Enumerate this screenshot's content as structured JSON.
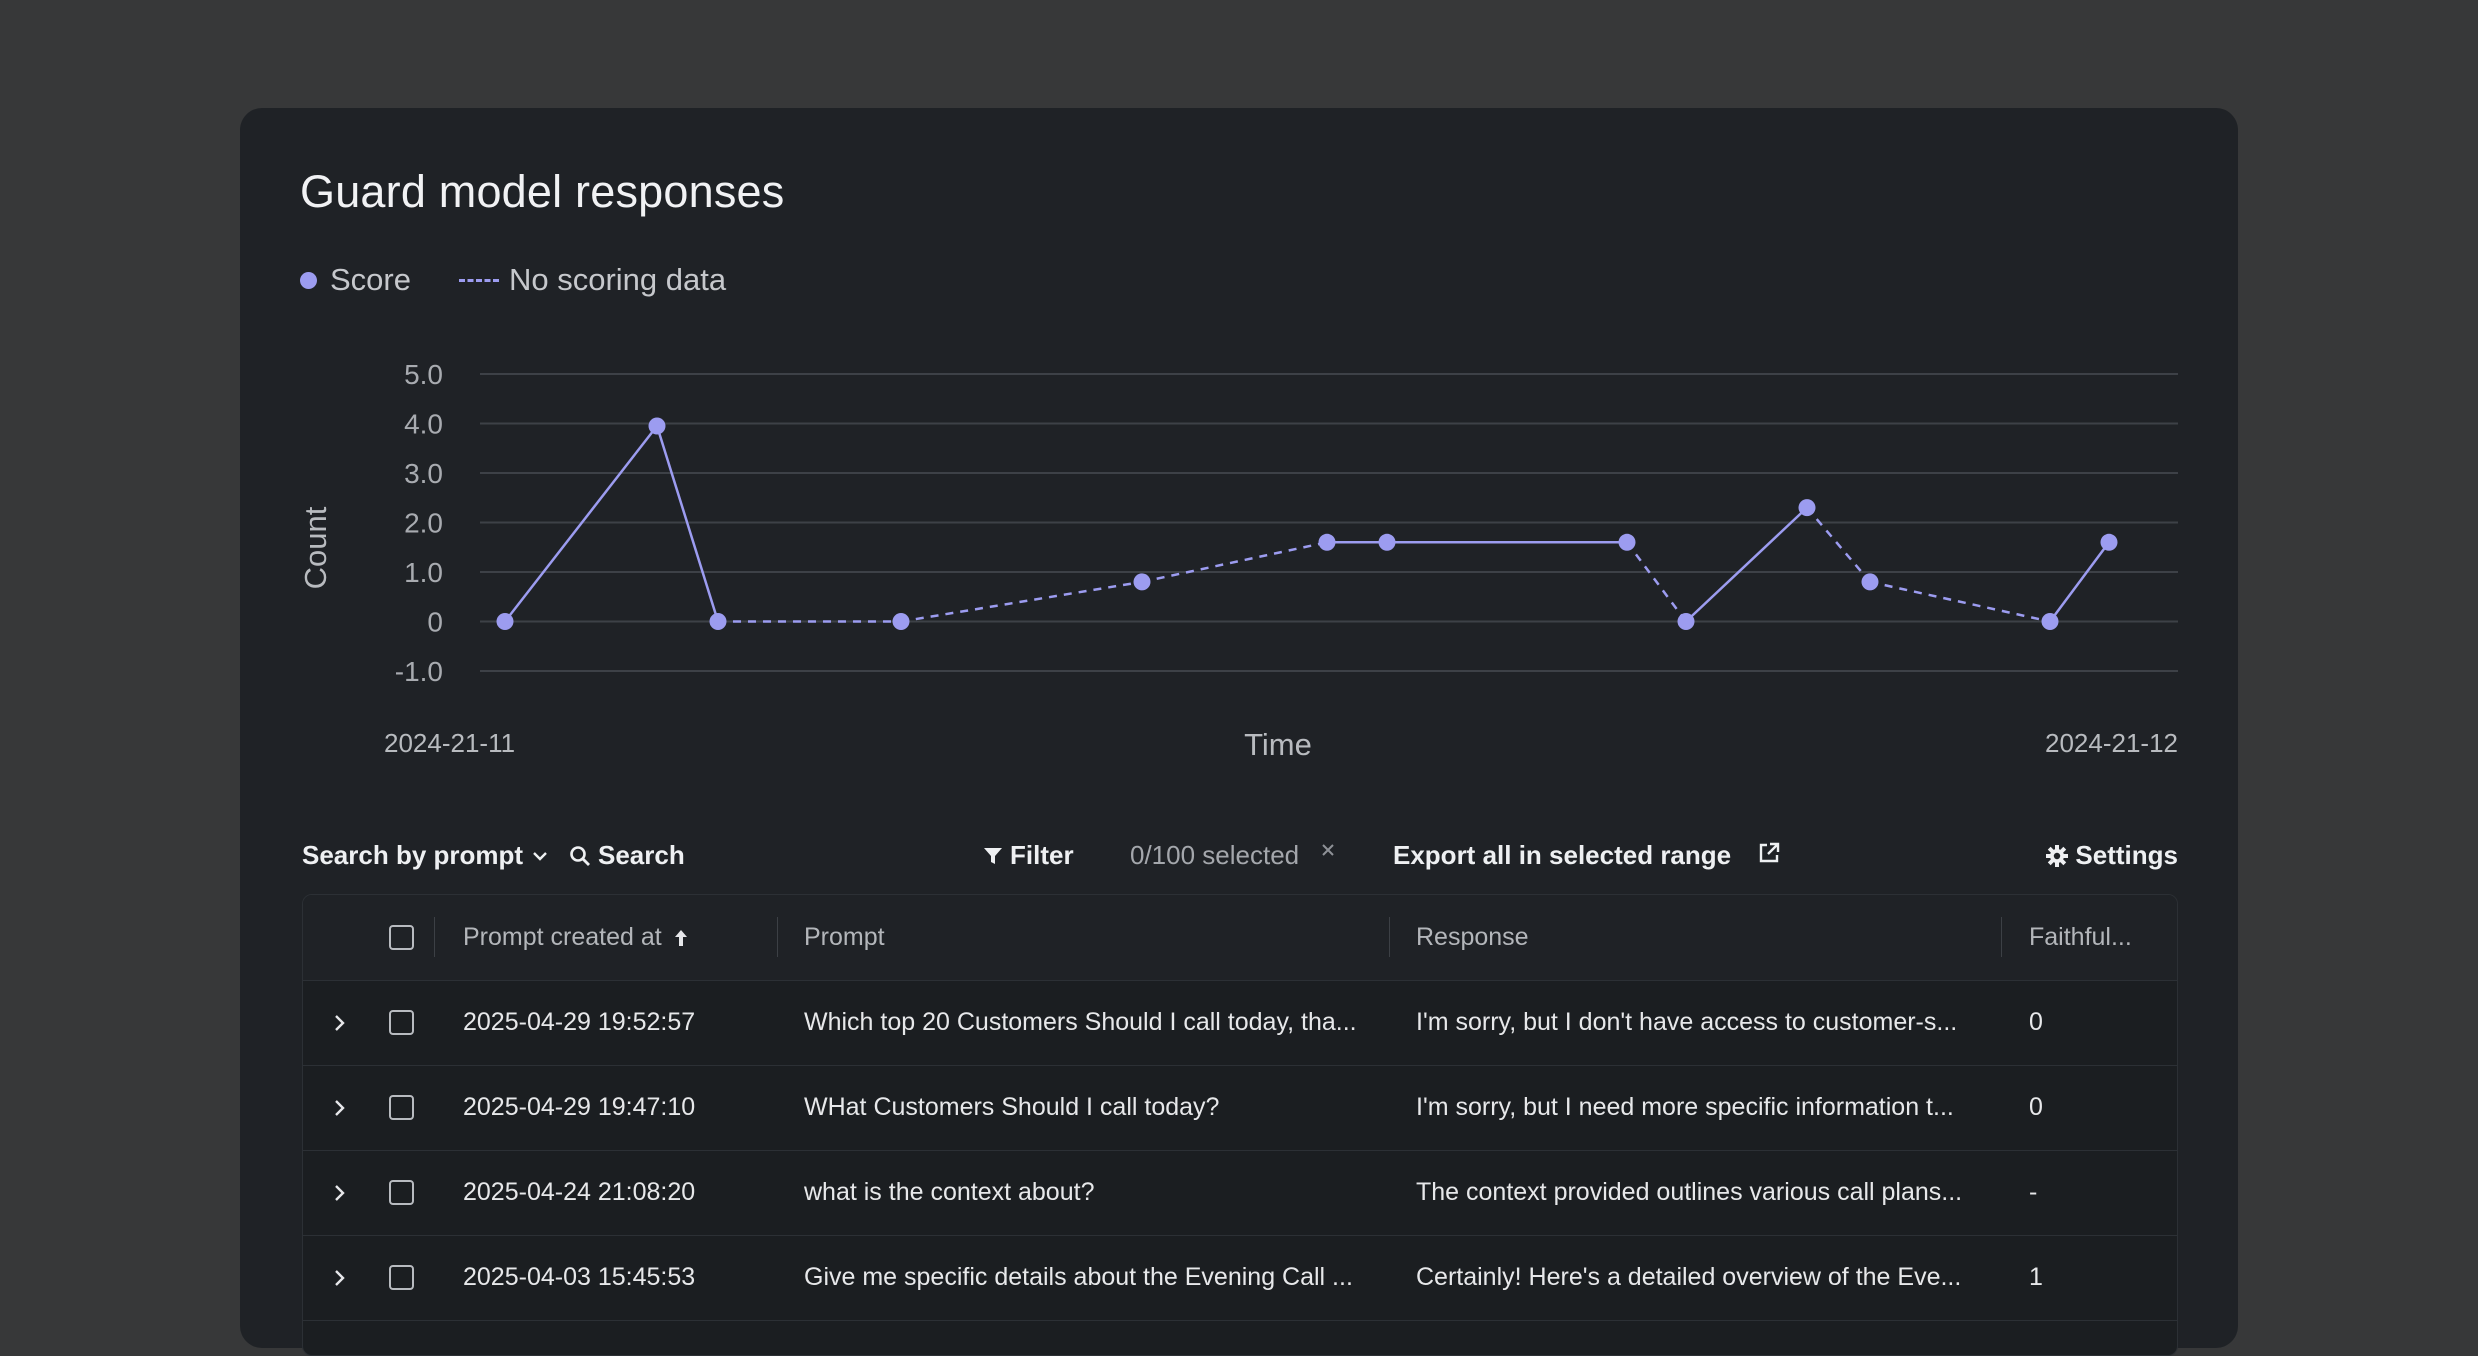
{
  "title": "Guard model responses",
  "legend": {
    "score": "Score",
    "no_scoring": "No scoring data"
  },
  "colors": {
    "series": "#9c9cf0",
    "background": "#1f2226",
    "page": "#373839"
  },
  "chart_data": {
    "type": "line",
    "xlabel": "Time",
    "ylabel": "Count",
    "ylim": [
      -1.0,
      5.0
    ],
    "yticks": [
      "5.0",
      "4.0",
      "3.0",
      "2.0",
      "1.0",
      "0",
      "-1.0"
    ],
    "x_start_label": "2024-21-11",
    "x_end_label": "2024-21-12",
    "grid": true,
    "series": [
      {
        "name": "Score",
        "values": [
          0,
          3.95,
          0,
          0,
          0.8,
          1.6,
          1.6,
          1.6,
          0,
          2.3,
          0.8,
          0,
          1.6
        ],
        "segment_styles": [
          "solid",
          "solid",
          "dashed",
          "dashed",
          "dashed",
          "solid",
          "solid",
          "dashed",
          "solid",
          "dashed",
          "dashed",
          "solid"
        ]
      }
    ]
  },
  "toolbar": {
    "search_by": "Search by prompt",
    "search": "Search",
    "filter": "Filter",
    "selected": "0/100 selected",
    "export": "Export all in selected range",
    "settings": "Settings"
  },
  "table": {
    "columns": [
      "Prompt created at",
      "Prompt",
      "Response",
      "Faithful..."
    ],
    "rows": [
      {
        "created": "2025-04-29 19:52:57",
        "prompt": "Which top 20 Customers Should I call today, tha...",
        "response": "I'm sorry, but I don't have access to customer-s...",
        "faithful": "0"
      },
      {
        "created": "2025-04-29 19:47:10",
        "prompt": "WHat Customers Should I call today?",
        "response": "I'm sorry, but I need more specific information t...",
        "faithful": "0"
      },
      {
        "created": "2025-04-24 21:08:20",
        "prompt": "what is the context about?",
        "response": "The context provided outlines various call plans...",
        "faithful": "-"
      },
      {
        "created": "2025-04-03 15:45:53",
        "prompt": "Give me specific details about the Evening Call ...",
        "response": "Certainly! Here's a detailed overview of the Eve...",
        "faithful": "1"
      }
    ]
  }
}
